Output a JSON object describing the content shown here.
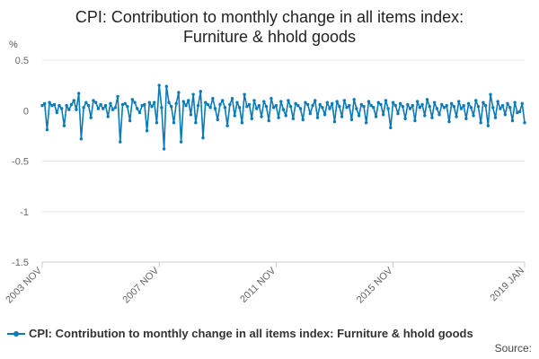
{
  "title_line1": "CPI: Contribution to monthly change in all items index:",
  "title_line2": "Furniture & hhold goods",
  "source_label": "Source:",
  "chart_data": {
    "type": "line",
    "ylabel": "%",
    "ylim": [
      -1.5,
      0.5
    ],
    "yticks": [
      0.5,
      0,
      -0.5,
      -1,
      -1.5
    ],
    "ytick_labels": [
      "0.5",
      "0",
      "-0.5",
      "-1",
      "-1.5"
    ],
    "x_start": "2003-11",
    "x_end": "2019-01",
    "xtick_labels": [
      "2003 NOV",
      "2007 NOV",
      "2011 NOV",
      "2015 NOV",
      "2019 JAN"
    ],
    "grid": true,
    "legend": "bottom",
    "colors": {
      "series": "#0a7ab8",
      "grid": "#e6e6e6"
    },
    "series": [
      {
        "name": "CPI: Contribution to monthly change in all items index: Furniture & hhold goods",
        "values": [
          0.05,
          0.07,
          -0.19,
          0.08,
          0.05,
          0.06,
          -0.02,
          0.05,
          0.02,
          -0.15,
          0.05,
          0.01,
          0.06,
          0.1,
          0.01,
          0.17,
          -0.28,
          0.03,
          0.08,
          0.05,
          -0.07,
          0.1,
          0.08,
          0.02,
          0.06,
          0.02,
          0.05,
          -0.06,
          0.07,
          0.01,
          0.03,
          0.14,
          -0.31,
          0.06,
          0.07,
          0.04,
          -0.1,
          0.11,
          0.08,
          0.02,
          -0.02,
          0.05,
          0.06,
          -0.2,
          0.08,
          0.04,
          0.08,
          -0.12,
          0.25,
          0.03,
          -0.38,
          0.24,
          0.08,
          0.04,
          -0.12,
          0.07,
          0.18,
          -0.31,
          0.09,
          0.05,
          0.1,
          -0.04,
          0.16,
          -0.12,
          0.05,
          0.19,
          -0.27,
          0.08,
          0.06,
          0.03,
          0.12,
          0.02,
          -0.09,
          0.06,
          0.1,
          0.03,
          -0.15,
          0.06,
          0.12,
          -0.05,
          0.08,
          0.03,
          -0.12,
          0.16,
          0.04,
          0.06,
          -0.08,
          0.1,
          0.02,
          0.05,
          -0.06,
          0.09,
          0.04,
          -0.1,
          0.12,
          0.03,
          0.05,
          -0.07,
          0.09,
          0.01,
          -0.05,
          0.1,
          0.04,
          -0.08,
          0.07,
          0.05,
          0.02,
          -0.09,
          0.08,
          0.06,
          -0.03,
          0.05,
          0.1,
          -0.07,
          0.06,
          0.03,
          -0.04,
          0.08,
          0.02,
          0.07,
          -0.11,
          0.09,
          0.04,
          -0.06,
          0.1,
          0.03,
          0.05,
          -0.09,
          0.11,
          0.02,
          -0.05,
          0.06,
          0.04,
          -0.12,
          0.09,
          0.05,
          0.03,
          -0.06,
          0.08,
          0.06,
          -0.04,
          0.1,
          0.02,
          -0.17,
          0.08,
          0.05,
          -0.03,
          0.07,
          0.04,
          -0.08,
          0.06,
          0.02,
          0.05,
          -0.1,
          0.09,
          0.03,
          0.06,
          -0.05,
          0.11,
          0.04,
          -0.07,
          0.08,
          0.02,
          -0.04,
          0.06,
          0.03,
          0.05,
          -0.11,
          0.07,
          0.04,
          -0.06,
          0.09,
          0.02,
          0.05,
          -0.08,
          0.07,
          0.03,
          -0.05,
          0.1,
          0.04,
          -0.12,
          0.08,
          0.05,
          -0.15,
          0.16,
          0.03,
          -0.07,
          0.09,
          0.02,
          0.05,
          -0.04,
          0.07,
          0.03,
          -0.1,
          0.08,
          -0.02,
          -0.01,
          0.07,
          -0.12
        ]
      }
    ]
  }
}
